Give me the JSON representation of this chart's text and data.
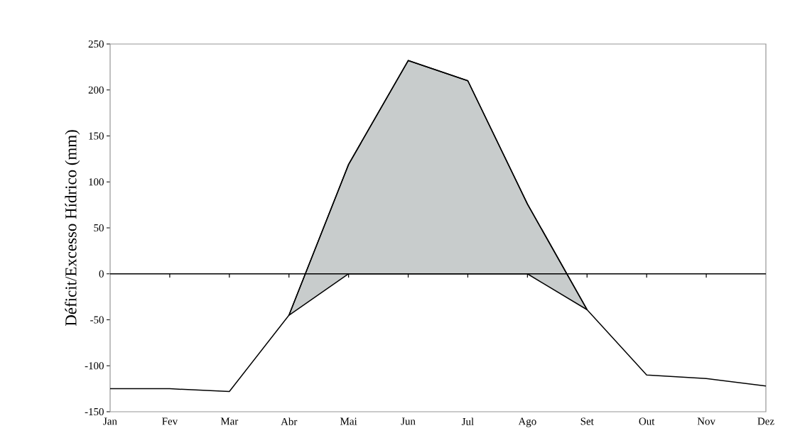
{
  "chart_data": {
    "type": "line",
    "ylabel": "Déficit/Excesso Hídrico (mm)",
    "categories": [
      "Jan",
      "Fev",
      "Mar",
      "Abr",
      "Mai",
      "Jun",
      "Jul",
      "Ago",
      "Set",
      "Out",
      "Nov",
      "Dez"
    ],
    "series": [
      {
        "color": "#000000",
        "values": [
          -125,
          -125,
          -128,
          -45,
          119,
          232,
          210,
          76,
          -39,
          -110,
          -114,
          -122
        ],
        "lower": [
          null,
          null,
          null,
          -45,
          0,
          0,
          0,
          0,
          -39,
          null,
          null,
          null
        ],
        "upper": [
          null,
          null,
          null,
          -45,
          119,
          232,
          210,
          76,
          -39,
          null,
          null,
          null
        ]
      }
    ],
    "ylim": [
      -150,
      250
    ],
    "yticks": [
      -150,
      -100,
      -50,
      0,
      50,
      100,
      150,
      200,
      250
    ],
    "ref_lines": [
      {
        "axis": "y",
        "value": 0,
        "color": "#000000"
      }
    ],
    "marker": "none",
    "line_style": "solid",
    "grid": false
  }
}
